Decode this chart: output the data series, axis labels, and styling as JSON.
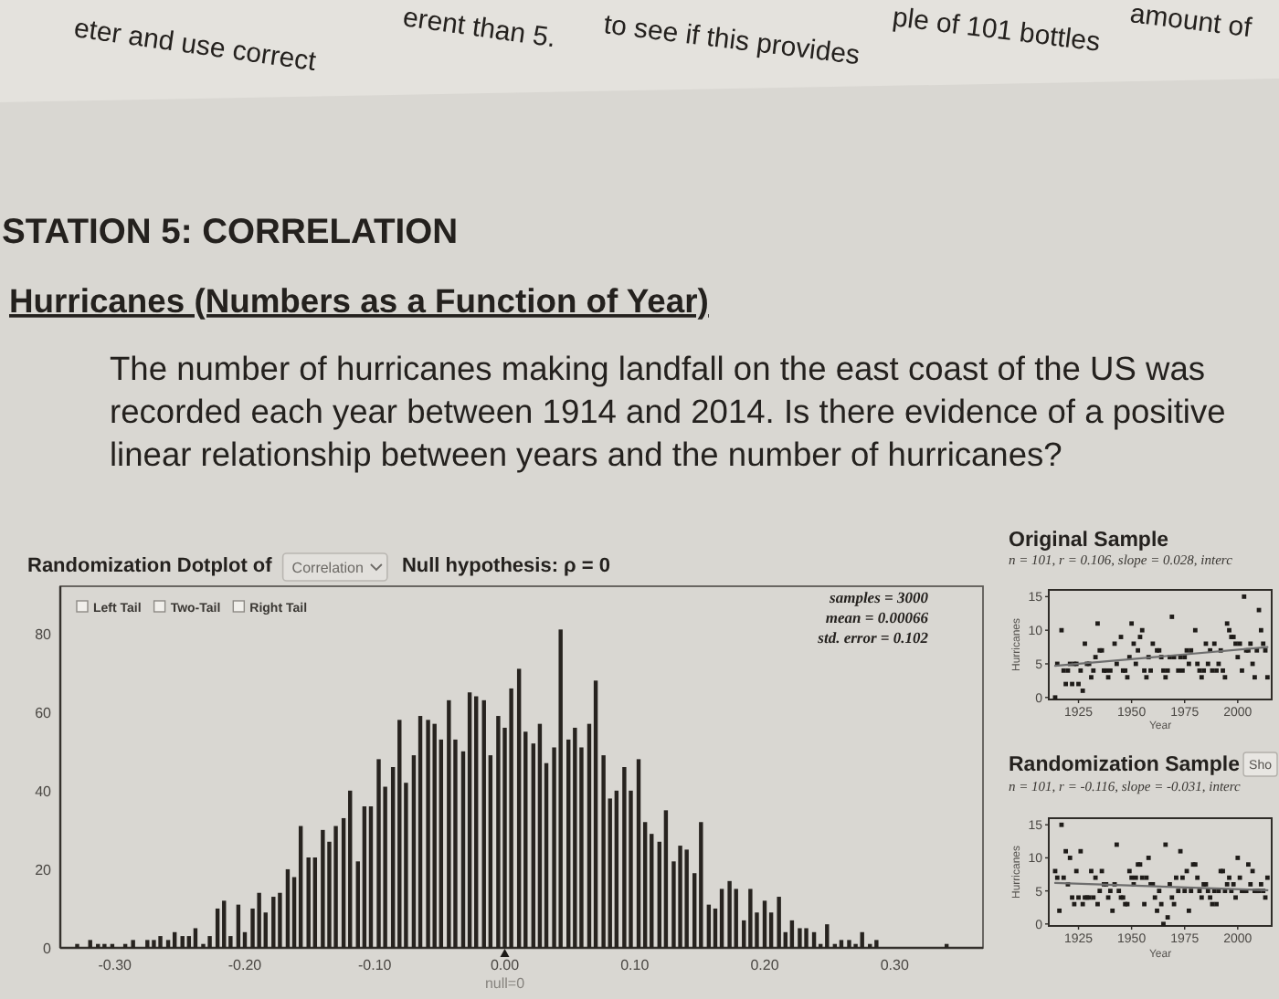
{
  "chart_data": [
    {
      "type": "other",
      "title": "STATION 5: CORRELATION",
      "subtitle": "Hurricanes (Numbers as a Function of Year)",
      "annotations": [
        "The number of hurricanes making landfall on the east coast of the US was recorded each year between 1914 and 2014. Is there evidence of a positive linear relationship between years and the number of hurricanes?",
        "eter and use correct",
        "erent than 5.",
        "to see if this provides",
        "ple of 101 bottles",
        "amount of"
      ]
    },
    {
      "type": "bar",
      "title": "Randomization Dotplot of",
      "color": "#27231f",
      "x": [
        -0.329,
        -0.319,
        -0.313,
        -0.308,
        -0.302,
        -0.292,
        -0.286,
        -0.275,
        -0.27,
        -0.265,
        -0.259,
        -0.254,
        -0.248,
        -0.243,
        -0.238,
        -0.232,
        -0.227,
        -0.221,
        -0.216,
        -0.211,
        -0.205,
        -0.2,
        -0.194,
        -0.189,
        -0.184,
        -0.178,
        -0.173,
        -0.167,
        -0.162,
        -0.157,
        -0.151,
        -0.146,
        -0.14,
        -0.135,
        -0.13,
        -0.124,
        -0.119,
        -0.113,
        -0.108,
        -0.103,
        -0.097,
        -0.092,
        -0.086,
        -0.081,
        -0.076,
        -0.07,
        -0.065,
        -0.059,
        -0.054,
        -0.049,
        -0.043,
        -0.038,
        -0.032,
        -0.027,
        -0.022,
        -0.016,
        -0.011,
        -0.005,
        0,
        0.005,
        0.011,
        0.016,
        0.022,
        0.027,
        0.032,
        0.038,
        0.043,
        0.049,
        0.054,
        0.059,
        0.065,
        0.07,
        0.076,
        0.081,
        0.086,
        0.092,
        0.097,
        0.103,
        0.108,
        0.113,
        0.119,
        0.124,
        0.13,
        0.135,
        0.14,
        0.146,
        0.151,
        0.157,
        0.162,
        0.167,
        0.173,
        0.178,
        0.184,
        0.189,
        0.194,
        0.2,
        0.205,
        0.211,
        0.216,
        0.221,
        0.227,
        0.232,
        0.238,
        0.243,
        0.248,
        0.254,
        0.259,
        0.265,
        0.27,
        0.275,
        0.281,
        0.286,
        0.34
      ],
      "values": [
        1,
        2,
        1,
        1,
        1,
        1,
        2,
        2,
        2,
        3,
        2,
        4,
        3,
        3,
        5,
        1,
        3,
        10,
        12,
        3,
        11,
        4,
        10,
        14,
        9,
        13,
        14,
        20,
        18,
        31,
        23,
        23,
        30,
        27,
        31,
        33,
        40,
        22,
        36,
        36,
        48,
        41,
        46,
        58,
        42,
        49,
        59,
        58,
        57,
        53,
        63,
        53,
        50,
        65,
        64,
        63,
        49,
        59,
        56,
        66,
        71,
        55,
        52,
        57,
        47,
        51,
        81,
        53,
        56,
        51,
        57,
        68,
        49,
        38,
        40,
        46,
        40,
        48,
        32,
        29,
        27,
        35,
        22,
        26,
        25,
        19,
        32,
        11,
        10,
        15,
        17,
        15,
        7,
        15,
        9,
        12,
        9,
        13,
        4,
        7,
        5,
        5,
        4,
        1,
        6,
        1,
        2,
        2,
        1,
        4,
        1,
        2,
        1
      ],
      "xlim": [
        -0.342,
        0.368
      ],
      "xticks": [
        {
          "value": -0.3,
          "label": "-0.30"
        },
        {
          "value": -0.2,
          "label": "-0.20"
        },
        {
          "value": -0.1,
          "label": "-0.10"
        },
        {
          "value": 0,
          "label": "0.00"
        },
        {
          "value": 0.1,
          "label": "0.10"
        },
        {
          "value": 0.2,
          "label": "0.20"
        },
        {
          "value": 0.3,
          "label": "0.30"
        }
      ],
      "ylim": [
        0,
        92
      ],
      "yticks": [
        0,
        20,
        40,
        60,
        80
      ],
      "annotations": [
        "Correlation",
        "Null hypothesis: ρ = 0",
        "Left Tail",
        "Two-Tail",
        "Right Tail",
        "samples = 3000",
        "mean = 0.00066",
        "std. error = 0.102",
        {
          "text": "null=0",
          "x": 0,
          "y": 0
        }
      ]
    },
    {
      "type": "scatter",
      "title": "Original Sample",
      "subtitle": "n = 101, r = 0.106, slope = 0.028, interc",
      "xlabel": "Year",
      "ylabel": "Hurricanes",
      "marker": "square",
      "series": [
        {
          "type": "scatter",
          "color": "#1f1c19",
          "x": [
            1914,
            1915,
            1917,
            1918,
            1919,
            1920,
            1921,
            1922,
            1923,
            1924,
            1925,
            1926,
            1927,
            1928,
            1929,
            1930,
            1931,
            1932,
            1933,
            1934,
            1935,
            1936,
            1937,
            1938,
            1939,
            1940,
            1942,
            1943,
            1945,
            1946,
            1947,
            1948,
            1949,
            1950,
            1951,
            1952,
            1953,
            1954,
            1955,
            1956,
            1957,
            1958,
            1959,
            1960,
            1962,
            1963,
            1964,
            1965,
            1966,
            1967,
            1968,
            1969,
            1970,
            1972,
            1973,
            1974,
            1975,
            1976,
            1977,
            1978,
            1980,
            1981,
            1982,
            1983,
            1984,
            1985,
            1986,
            1987,
            1988,
            1989,
            1990,
            1991,
            1992,
            1993,
            1994,
            1995,
            1996,
            1997,
            1998,
            1999,
            2000,
            2001,
            2002,
            2003,
            2004,
            2005,
            2006,
            2007,
            2008,
            2009,
            2010,
            2011,
            2012,
            2013,
            2014
          ],
          "values": [
            0,
            5,
            10,
            4,
            2,
            4,
            5,
            2,
            5,
            5,
            2,
            4,
            1,
            8,
            5,
            5,
            3,
            4,
            6,
            11,
            7,
            7,
            4,
            4,
            3,
            4,
            8,
            5,
            9,
            4,
            4,
            3,
            6,
            11,
            8,
            5,
            7,
            9,
            10,
            4,
            3,
            6,
            4,
            8,
            7,
            7,
            6,
            4,
            3,
            4,
            6,
            12,
            6,
            4,
            6,
            4,
            6,
            7,
            5,
            7,
            10,
            5,
            4,
            3,
            4,
            8,
            5,
            7,
            4,
            8,
            4,
            5,
            7,
            4,
            3,
            11,
            10,
            9,
            9,
            8,
            6,
            8,
            4,
            15,
            7,
            7,
            8,
            5,
            3,
            7,
            13,
            10,
            8,
            7,
            3
          ]
        },
        {
          "type": "line",
          "color": "#6e6e6e",
          "marker": "none",
          "x": [
            1914,
            2014
          ],
          "values": [
            4.7,
            7.5
          ]
        }
      ],
      "xlim": [
        1911,
        2016
      ],
      "xticks": [
        1925,
        1950,
        1975,
        2000
      ],
      "ylim": [
        -0.3,
        16
      ],
      "yticks": [
        0,
        5,
        10,
        15
      ]
    },
    {
      "type": "scatter",
      "title": "Randomization Sample",
      "subtitle": "n = 101, r = -0.116, slope = -0.031, interc",
      "xlabel": "Year",
      "ylabel": "Hurricanes",
      "marker": "square",
      "series": [
        {
          "type": "scatter",
          "color": "#1f1c19",
          "x": [
            1914,
            1915,
            1916,
            1917,
            1918,
            1919,
            1920,
            1921,
            1922,
            1923,
            1924,
            1925,
            1926,
            1927,
            1928,
            1929,
            1930,
            1931,
            1932,
            1933,
            1934,
            1935,
            1936,
            1937,
            1938,
            1939,
            1940,
            1941,
            1942,
            1943,
            1944,
            1945,
            1946,
            1947,
            1948,
            1949,
            1950,
            1951,
            1952,
            1953,
            1954,
            1955,
            1956,
            1957,
            1958,
            1959,
            1960,
            1961,
            1962,
            1963,
            1964,
            1965,
            1966,
            1967,
            1968,
            1969,
            1970,
            1971,
            1972,
            1973,
            1974,
            1975,
            1976,
            1977,
            1978,
            1979,
            1980,
            1981,
            1982,
            1983,
            1984,
            1985,
            1986,
            1987,
            1988,
            1989,
            1990,
            1991,
            1992,
            1993,
            1994,
            1995,
            1996,
            1997,
            1998,
            1999,
            2000,
            2001,
            2002,
            2003,
            2004,
            2005,
            2006,
            2007,
            2008,
            2009,
            2010,
            2011,
            2012,
            2013,
            2014
          ],
          "values": [
            8,
            7,
            2,
            15,
            7,
            11,
            6,
            10,
            4,
            3,
            8,
            4,
            11,
            3,
            4,
            4,
            4,
            8,
            4,
            7,
            3,
            5,
            8,
            6,
            6,
            4,
            5,
            2,
            6,
            12,
            5,
            4,
            4,
            3,
            3,
            8,
            7,
            6,
            7,
            9,
            9,
            7,
            3,
            7,
            10,
            6,
            6,
            4,
            2,
            5,
            3,
            0,
            12,
            1,
            6,
            4,
            3,
            7,
            5,
            11,
            7,
            5,
            8,
            2,
            5,
            9,
            9,
            7,
            5,
            4,
            6,
            6,
            5,
            4,
            3,
            5,
            3,
            5,
            8,
            8,
            5,
            6,
            7,
            5,
            6,
            4,
            10,
            7,
            5,
            5,
            5,
            9,
            6,
            8,
            5,
            5,
            5,
            6,
            5,
            4,
            7
          ]
        },
        {
          "type": "line",
          "color": "#6e6e6e",
          "marker": "none",
          "x": [
            1914,
            2014
          ],
          "values": [
            6.2,
            5.1
          ]
        }
      ],
      "xlim": [
        1911,
        2016
      ],
      "xticks": [
        1925,
        1950,
        1975,
        2000
      ],
      "ylim": [
        -0.3,
        16
      ],
      "yticks": [
        0,
        5,
        10,
        15
      ],
      "annotations": [
        "Sho"
      ]
    }
  ]
}
